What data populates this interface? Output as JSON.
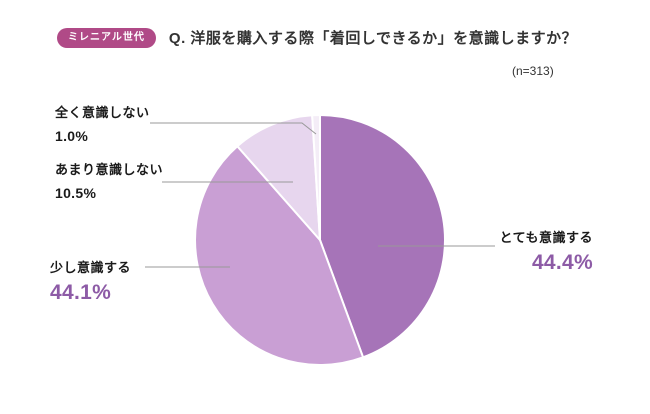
{
  "header": {
    "badge": "ミレニアル世代",
    "title": "Q. 洋服を購入する際「着回しできるか」を意識しますか？",
    "sample": "(n=313)"
  },
  "chart_data": {
    "type": "pie",
    "title": "洋服を購入する際「着回しできるか」を意識しますか？",
    "group": "ミレニアル世代",
    "sample_size": 313,
    "start_angle_deg": 0,
    "direction": "clockwise",
    "legend_position": "callout-labels",
    "segments": [
      {
        "label": "とても意識する",
        "value": 44.4,
        "pct": "44.4%",
        "color": "#a674b8"
      },
      {
        "label": "少し意識する",
        "value": 44.1,
        "pct": "44.1%",
        "color": "#c99fd4"
      },
      {
        "label": "あまり意識しない",
        "value": 10.5,
        "pct": "10.5%",
        "color": "#e7d6ee"
      },
      {
        "label": "全く意識しない",
        "value": 1.0,
        "pct": "1.0%",
        "color": "#f4edf7"
      }
    ]
  },
  "colors": {
    "badge_bg": "#b04a87",
    "accent_purple": "#8d5ba6",
    "title_text": "#333333",
    "leader_line": "#999999",
    "segment_stroke": "#ffffff"
  }
}
